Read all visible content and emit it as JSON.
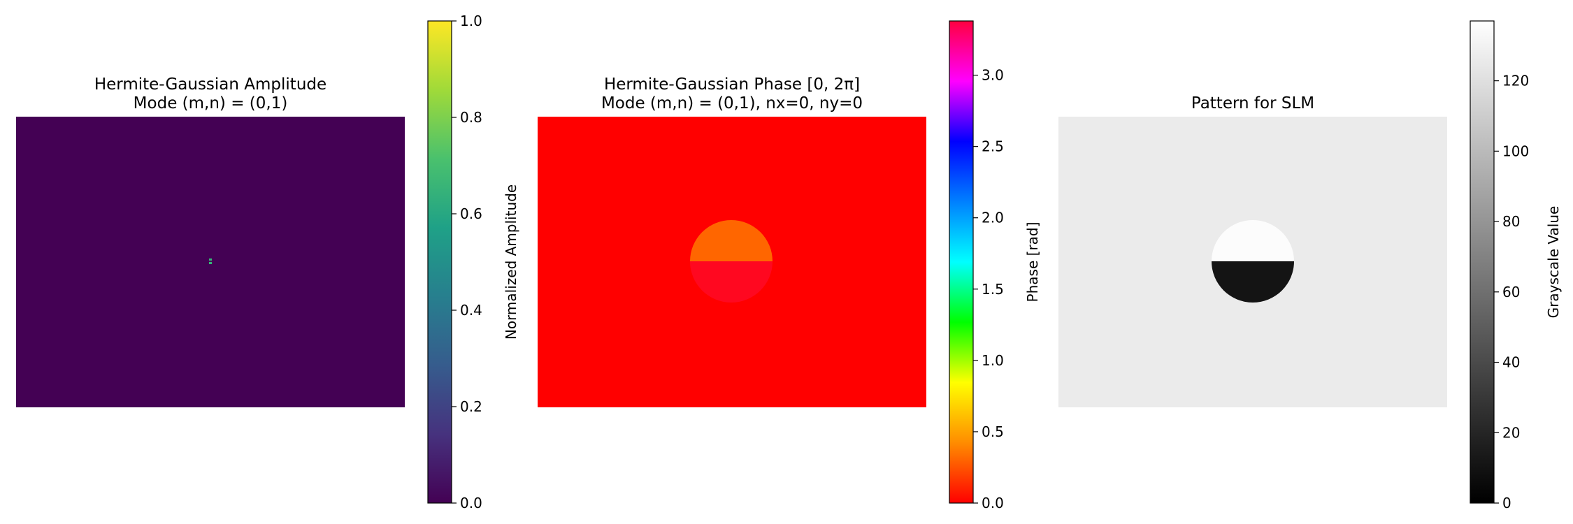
{
  "chart_data": [
    {
      "type": "heatmap",
      "title": "Hermite-Gaussian Amplitude\nMode (m,n) = (0,1)",
      "background_color": "#440154",
      "colorbar": {
        "label": "Normalized Amplitude",
        "range": [
          0.0,
          1.0
        ],
        "ticks": [
          0.0,
          0.2,
          0.4,
          0.6,
          0.8,
          1.0
        ],
        "tick_labels": [
          "0.0",
          "0.2",
          "0.4",
          "0.6",
          "0.8",
          "1.0"
        ],
        "colormap": "viridis",
        "stops": [
          "#440154",
          "#46327e",
          "#365c8d",
          "#277f8e",
          "#1fa187",
          "#4ac16d",
          "#a0da39",
          "#fde725"
        ]
      },
      "features": [
        {
          "kind": "spot",
          "value": 1.0,
          "color_top": "#35b779",
          "color_bottom": "#35b779"
        }
      ],
      "axes_visible": false
    },
    {
      "type": "heatmap",
      "title": "Hermite-Gaussian Phase [0, 2π]\nMode (m,n) = (0,1), nx=0, ny=0",
      "background_color": "#ff0000",
      "colorbar": {
        "label": "Phase [rad]",
        "range": [
          0.0,
          3.38
        ],
        "ticks": [
          0.0,
          0.5,
          1.0,
          1.5,
          2.0,
          2.5,
          3.0
        ],
        "tick_labels": [
          "0.0",
          "0.5",
          "1.0",
          "1.5",
          "2.0",
          "2.5",
          "3.0"
        ],
        "colormap": "hsv",
        "stops": [
          "#ff0000",
          "#ff8c00",
          "#ffff00",
          "#00ff00",
          "#00ffff",
          "#0080ff",
          "#0000ff",
          "#ff00ff",
          "#ff0040"
        ]
      },
      "features": [
        {
          "kind": "split-disc",
          "top_value": 0.3,
          "bottom_value": 3.3,
          "color_top": "#ff6600",
          "color_bottom": "#ff0820"
        }
      ],
      "axes_visible": false
    },
    {
      "type": "heatmap",
      "title": "Pattern for SLM",
      "background_color": "#ebebeb",
      "colorbar": {
        "label": "Grayscale Value",
        "range": [
          0,
          137
        ],
        "ticks": [
          0,
          20,
          40,
          60,
          80,
          100,
          120
        ],
        "tick_labels": [
          "0",
          "20",
          "40",
          "60",
          "80",
          "100",
          "120"
        ],
        "colormap": "gray",
        "stops": [
          "#000000",
          "#ffffff"
        ]
      },
      "features": [
        {
          "kind": "split-disc",
          "top_value": 137,
          "bottom_value": 20,
          "color_top": "#fcfcfc",
          "color_bottom": "#141414"
        }
      ],
      "axes_visible": false
    }
  ]
}
